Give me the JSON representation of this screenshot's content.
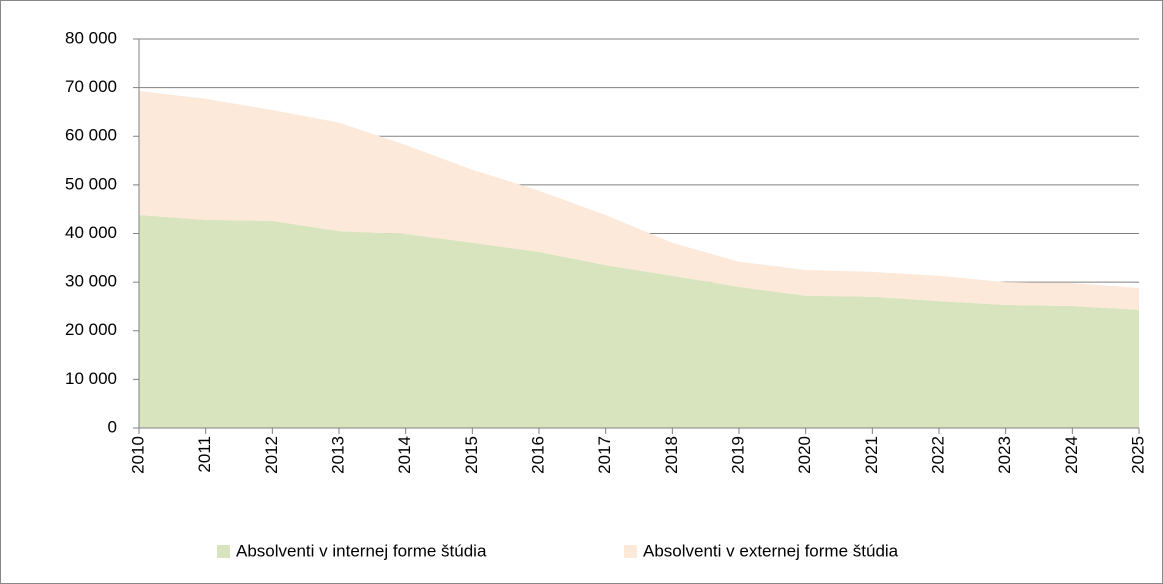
{
  "chart_data": {
    "type": "stacked_area",
    "categories": [
      "2010",
      "2011",
      "2012",
      "2013",
      "2014",
      "2015",
      "2016",
      "2017",
      "2018",
      "2019",
      "2020",
      "2021",
      "2022",
      "2023",
      "2024",
      "2025"
    ],
    "series": [
      {
        "name": "Absolventi v internej forme štúdia",
        "color": "#d7e4bd",
        "values": [
          43800,
          42800,
          42600,
          40500,
          39900,
          38100,
          36200,
          33500,
          31300,
          29000,
          27200,
          27000,
          26100,
          25300,
          25100,
          24300
        ]
      },
      {
        "name": "Absolventi v externej forme štúdia",
        "color": "#fde9d9",
        "values": [
          25500,
          24900,
          22800,
          22300,
          18300,
          15000,
          12600,
          10300,
          6800,
          5200,
          5300,
          5100,
          5200,
          4700,
          4700,
          4500
        ]
      }
    ],
    "ylim": [
      0,
      80000
    ],
    "yticks": [
      0,
      {
        "value": 10000,
        "label": "10 000"
      },
      {
        "value": 20000,
        "label": "20 000"
      },
      {
        "value": 30000,
        "label": "30 000"
      },
      {
        "value": 40000,
        "label": "40 000"
      },
      {
        "value": 50000,
        "label": "50 000"
      },
      {
        "value": 60000,
        "label": "60 000"
      },
      {
        "value": 70000,
        "label": "70 000"
      },
      {
        "value": 80000,
        "label": "80 000"
      }
    ],
    "grid": true,
    "legend": "bottom"
  }
}
